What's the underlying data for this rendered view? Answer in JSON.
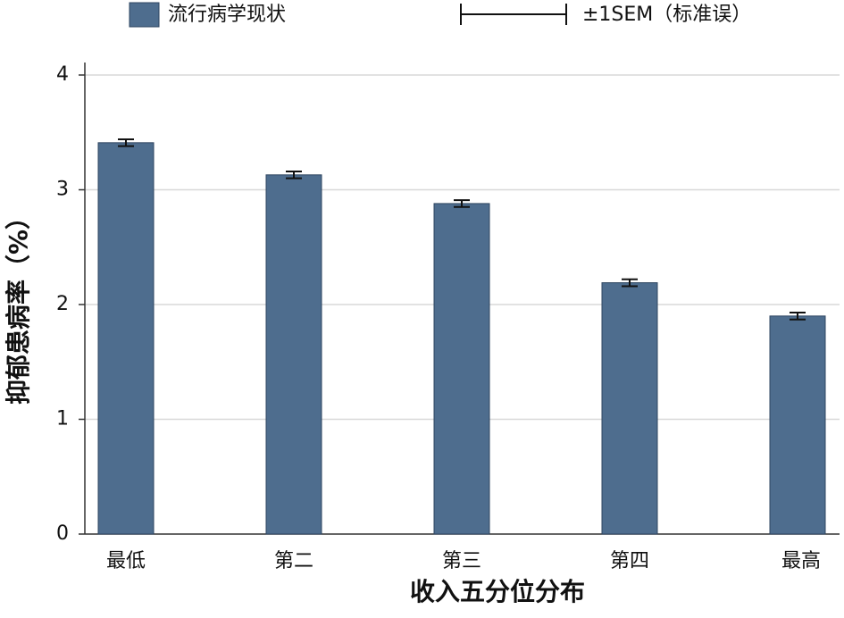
{
  "chart_data": {
    "type": "bar",
    "x_label": "收入五分位分布",
    "y_label": "抑郁患病率（%）",
    "categories": [
      "最低",
      "第二",
      "第三",
      "第四",
      "最高"
    ],
    "series": [
      {
        "name": "流行病学现状",
        "color": "#4e6d8e",
        "values": [
          3.41,
          3.13,
          2.88,
          2.19,
          1.9
        ],
        "errors": [
          0.03,
          0.03,
          0.03,
          0.03,
          0.03
        ]
      }
    ],
    "error_legend": "±1SEM（标准误）",
    "ylim": [
      0,
      4
    ],
    "yticks": [
      0,
      1,
      2,
      3,
      4
    ],
    "grid": true
  }
}
